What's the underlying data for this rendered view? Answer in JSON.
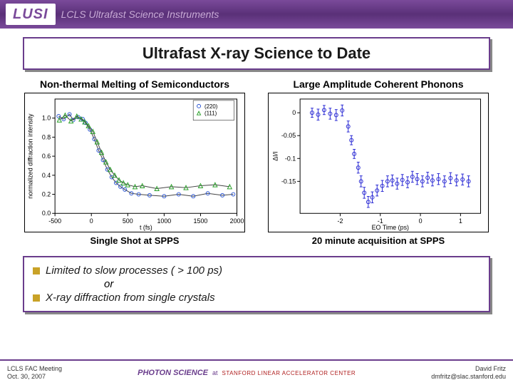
{
  "header": {
    "logo": "LUSI",
    "subtitle": "LCLS Ultrafast Science Instruments"
  },
  "title": "Ultrafast X-ray Science to Date",
  "chart_left": {
    "title": "Non-thermal Melting of Semiconductors",
    "caption": "Single Shot at SPPS",
    "type": "scatter-line",
    "xlabel": "t (fs)",
    "ylabel": "normalized diffraction intensity",
    "xlim": [
      -500,
      2000
    ],
    "xtick_step": 500,
    "ylim": [
      0.0,
      1.2
    ],
    "ytick_step": 0.2,
    "ytick_labels": [
      "0.0",
      "0.2",
      "0.4",
      "0.6",
      "0.8",
      "1.0"
    ],
    "series": [
      {
        "name": "(220)",
        "marker": "circle",
        "color": "#2a55d4",
        "line_color": "#444444"
      },
      {
        "name": "(111)",
        "marker": "triangle",
        "color": "#2aa02a",
        "line_color": "#444444"
      }
    ],
    "legend_pos": "top-right",
    "background_color": "#ffffff",
    "axis_fontsize": 9,
    "data_220": [
      [
        -450,
        1.02
      ],
      [
        -380,
        0.99
      ],
      [
        -300,
        1.04
      ],
      [
        -250,
        0.98
      ],
      [
        -180,
        1.01
      ],
      [
        -120,
        0.99
      ],
      [
        -80,
        0.95
      ],
      [
        -20,
        0.88
      ],
      [
        40,
        0.78
      ],
      [
        100,
        0.66
      ],
      [
        160,
        0.56
      ],
      [
        220,
        0.46
      ],
      [
        280,
        0.38
      ],
      [
        340,
        0.32
      ],
      [
        400,
        0.28
      ],
      [
        460,
        0.25
      ],
      [
        550,
        0.21
      ],
      [
        650,
        0.2
      ],
      [
        800,
        0.19
      ],
      [
        1000,
        0.18
      ],
      [
        1200,
        0.2
      ],
      [
        1400,
        0.18
      ],
      [
        1600,
        0.21
      ],
      [
        1800,
        0.19
      ],
      [
        1950,
        0.2
      ]
    ],
    "data_111": [
      [
        -440,
        0.98
      ],
      [
        -360,
        1.03
      ],
      [
        -280,
        0.97
      ],
      [
        -200,
        1.02
      ],
      [
        -140,
        0.99
      ],
      [
        -90,
        0.96
      ],
      [
        -40,
        0.92
      ],
      [
        20,
        0.86
      ],
      [
        80,
        0.75
      ],
      [
        140,
        0.64
      ],
      [
        200,
        0.54
      ],
      [
        260,
        0.46
      ],
      [
        320,
        0.4
      ],
      [
        380,
        0.35
      ],
      [
        440,
        0.32
      ],
      [
        500,
        0.3
      ],
      [
        600,
        0.28
      ],
      [
        700,
        0.29
      ],
      [
        900,
        0.26
      ],
      [
        1100,
        0.28
      ],
      [
        1300,
        0.27
      ],
      [
        1500,
        0.29
      ],
      [
        1700,
        0.3
      ],
      [
        1900,
        0.28
      ]
    ]
  },
  "chart_right": {
    "title": "Large Amplitude Coherent Phonons",
    "caption": "20 minute acquisition at SPPS",
    "type": "scatter-errorbar",
    "xlabel": "EO Time (ps)",
    "ylabel": "ΔI/I",
    "xlim": [
      -3,
      1.5
    ],
    "xticks": [
      -2,
      -1,
      0,
      1
    ],
    "ylim": [
      -0.22,
      0.03
    ],
    "yticks": [
      0,
      -0.05,
      -0.1,
      -0.15
    ],
    "ytick_labels": [
      "0",
      "-0.05",
      "-0.1",
      "-0.15"
    ],
    "marker_color": "#2a2ad4",
    "error_color": "#2a2ad4",
    "background_color": "#ffffff",
    "axis_fontsize": 9,
    "data": [
      [
        -2.7,
        0.0,
        0.01
      ],
      [
        -2.55,
        -0.004,
        0.012
      ],
      [
        -2.4,
        0.006,
        0.01
      ],
      [
        -2.25,
        -0.002,
        0.012
      ],
      [
        -2.1,
        -0.005,
        0.012
      ],
      [
        -1.95,
        0.005,
        0.012
      ],
      [
        -1.8,
        -0.03,
        0.012
      ],
      [
        -1.72,
        -0.06,
        0.01
      ],
      [
        -1.65,
        -0.09,
        0.01
      ],
      [
        -1.55,
        -0.12,
        0.012
      ],
      [
        -1.48,
        -0.15,
        0.012
      ],
      [
        -1.4,
        -0.175,
        0.012
      ],
      [
        -1.3,
        -0.195,
        0.012
      ],
      [
        -1.2,
        -0.185,
        0.012
      ],
      [
        -1.08,
        -0.17,
        0.012
      ],
      [
        -0.95,
        -0.16,
        0.012
      ],
      [
        -0.82,
        -0.15,
        0.012
      ],
      [
        -0.7,
        -0.148,
        0.012
      ],
      [
        -0.58,
        -0.155,
        0.012
      ],
      [
        -0.45,
        -0.147,
        0.012
      ],
      [
        -0.32,
        -0.152,
        0.012
      ],
      [
        -0.2,
        -0.14,
        0.012
      ],
      [
        -0.08,
        -0.145,
        0.012
      ],
      [
        0.05,
        -0.15,
        0.012
      ],
      [
        0.18,
        -0.142,
        0.012
      ],
      [
        0.3,
        -0.148,
        0.012
      ],
      [
        0.45,
        -0.145,
        0.012
      ],
      [
        0.6,
        -0.15,
        0.012
      ],
      [
        0.75,
        -0.143,
        0.012
      ],
      [
        0.9,
        -0.148,
        0.012
      ],
      [
        1.05,
        -0.146,
        0.012
      ],
      [
        1.2,
        -0.15,
        0.012
      ]
    ]
  },
  "limitations": {
    "line1": "Limited to slow processes ( > 100 ps)",
    "or": "or",
    "line2": "X-ray diffraction from single crystals"
  },
  "footer": {
    "left_line1": "LCLS FAC Meeting",
    "left_line2": "Oct. 30, 2007",
    "center_logo": "PHOTON SCIENCE",
    "center_at": "at",
    "center_org": "STANFORD LINEAR ACCELERATOR CENTER",
    "right_line1": "David Fritz",
    "right_line2": "dmfritz@slac.stanford.edu"
  },
  "colors": {
    "purple": "#6a3d8c",
    "header_grad_mid": "#5a3078",
    "gold": "#c9a227",
    "shadow": "#888888"
  }
}
